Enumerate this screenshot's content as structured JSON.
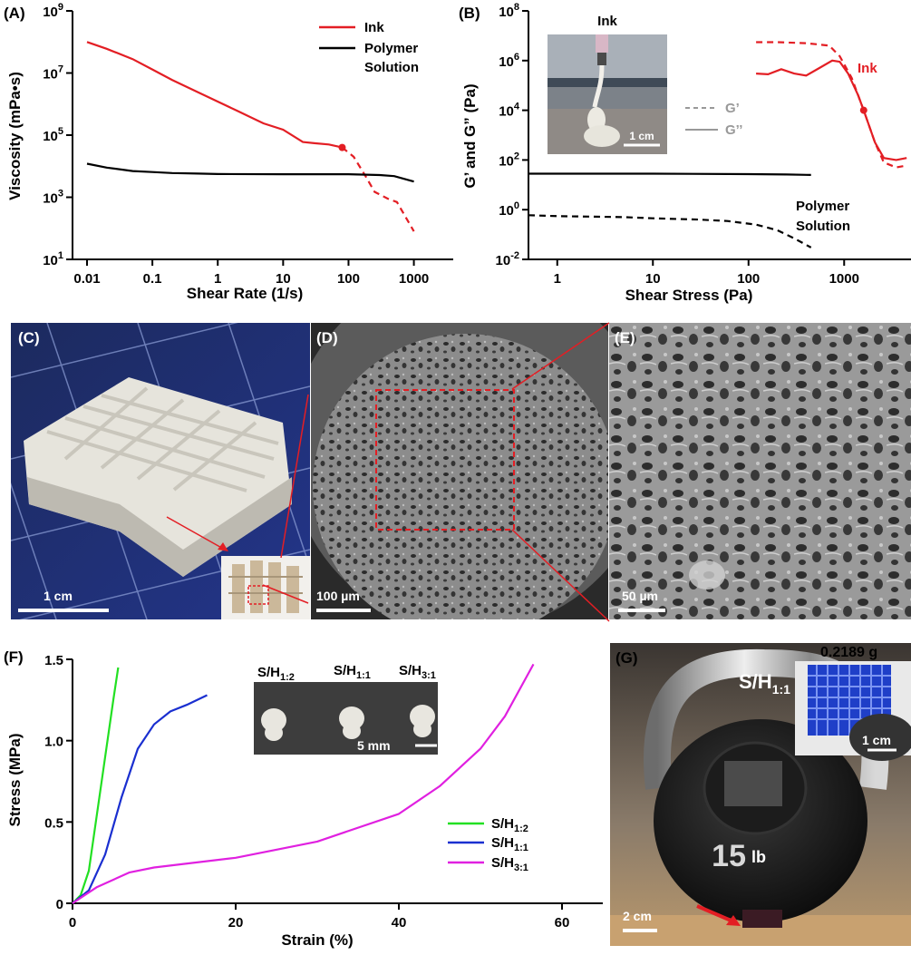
{
  "panel_a": {
    "label": "(A)",
    "chart_data": {
      "type": "line",
      "title": "",
      "xlabel": "Shear Rate (1/s)",
      "ylabel": "Viscosity (mPa•s)",
      "xscale": "log",
      "yscale": "log",
      "xlim": [
        0.006,
        4000
      ],
      "ylim": [
        10,
        1000000000
      ],
      "x_ticks": [
        "0.01",
        "0.1",
        "1",
        "10",
        "100",
        "1000"
      ],
      "y_ticks": [
        "10^1",
        "10^3",
        "10^5",
        "10^7",
        "10^9"
      ],
      "legend_position": "top-right",
      "series": [
        {
          "name": "Ink",
          "color": "#e31e24",
          "style": "solid",
          "x": [
            0.01,
            0.02,
            0.05,
            0.1,
            0.2,
            0.5,
            1,
            2,
            5,
            10,
            20,
            30,
            50,
            80
          ],
          "y": [
            100000000,
            60000000,
            28000000,
            13000000,
            6000000,
            2400000,
            1200000,
            600000,
            240000,
            150000,
            60000,
            55000,
            50000,
            40000
          ]
        },
        {
          "name": "",
          "color": "#e31e24",
          "style": "dashed",
          "x": [
            80,
            120,
            180,
            250,
            400,
            550,
            1000
          ],
          "y": [
            40000,
            20000,
            5000,
            1500,
            900,
            700,
            80
          ]
        },
        {
          "name": "Polymer Solution",
          "color": "#000000",
          "style": "solid",
          "x": [
            0.01,
            0.02,
            0.05,
            0.1,
            0.2,
            0.5,
            1,
            10,
            100,
            300,
            500,
            1000
          ],
          "y": [
            12000,
            9000,
            7000,
            6500,
            6000,
            5800,
            5600,
            5500,
            5500,
            5200,
            4800,
            3200
          ]
        }
      ],
      "markers": [
        {
          "x": 80,
          "y": 40000,
          "color": "#e31e24"
        }
      ],
      "legend": [
        "Ink",
        "Polymer",
        "Solution"
      ]
    }
  },
  "panel_b": {
    "label": "(B)",
    "inset_label": "Ink",
    "inset_scale": "1 cm",
    "chart_data": {
      "type": "line",
      "title": "",
      "xlabel": "Shear Stress (Pa)",
      "ylabel": "G’ and G” (Pa)",
      "xscale": "log",
      "yscale": "log",
      "xlim": [
        0.5,
        5000
      ],
      "ylim": [
        0.01,
        100000000
      ],
      "x_ticks": [
        "1",
        "10",
        "100",
        "1000"
      ],
      "y_ticks": [
        "10^-2",
        "10^0",
        "10^2",
        "10^4",
        "10^6",
        "10^8"
      ],
      "legend_position": "center-right",
      "series": [
        {
          "name": "Ink G’",
          "color": "#e31e24",
          "style": "dashed",
          "x": [
            120,
            200,
            400,
            700,
            900,
            1200,
            1600,
            2100,
            2600,
            3500,
            4500
          ],
          "y": [
            5500000,
            5500000,
            5000000,
            4000000,
            1500000,
            200000,
            10000,
            500,
            80,
            50,
            60
          ]
        },
        {
          "name": "Ink G”",
          "color": "#e31e24",
          "style": "solid",
          "x": [
            120,
            160,
            220,
            300,
            400,
            550,
            750,
            900,
            1100,
            1400,
            1600,
            2100,
            2600,
            3500,
            4500
          ],
          "y": [
            300000,
            280000,
            450000,
            300000,
            250000,
            500000,
            1000000,
            900000,
            300000,
            40000,
            10000,
            500,
            120,
            100,
            120
          ]
        },
        {
          "name": "Polymer Solution G’",
          "color": "#000000",
          "style": "dashed",
          "x": [
            0.5,
            1,
            5,
            10,
            30,
            60,
            120,
            200,
            300,
            450
          ],
          "y": [
            0.6,
            0.55,
            0.5,
            0.45,
            0.4,
            0.35,
            0.25,
            0.15,
            0.07,
            0.03
          ]
        },
        {
          "name": "Polymer Solution G”",
          "color": "#000000",
          "style": "solid",
          "x": [
            0.5,
            1,
            10,
            100,
            250,
            450
          ],
          "y": [
            28,
            28,
            28,
            27,
            26,
            25
          ]
        }
      ],
      "markers": [
        {
          "x": 1600,
          "y": 10000,
          "color": "#e31e24"
        }
      ],
      "legend": [
        "G’",
        "G’’"
      ],
      "annotations": [
        "Ink",
        "Polymer",
        "Solution"
      ]
    }
  },
  "panel_c": {
    "label": "(C)",
    "scalebar": "1 cm"
  },
  "panel_d": {
    "label": "(D)",
    "scalebar": "100 µm"
  },
  "panel_e": {
    "label": "(E)",
    "scalebar": "50 µm"
  },
  "panel_f": {
    "label": "(F)",
    "inset_labels": [
      "S/H",
      "S/H",
      "S/H"
    ],
    "inset_label_subs": [
      "1:2",
      "1:1",
      "3:1"
    ],
    "inset_scale": "5 mm",
    "chart_data": {
      "type": "line",
      "title": "",
      "xlabel": "Strain (%)",
      "ylabel": "Stress (MPa)",
      "xlim": [
        0,
        65
      ],
      "ylim": [
        0,
        1.5
      ],
      "x_ticks": [
        "0",
        "20",
        "40",
        "60"
      ],
      "y_ticks": [
        "0",
        "0.5",
        "1.0",
        "1.5"
      ],
      "legend_position": "center-right",
      "series": [
        {
          "name": "S/H1:2",
          "name_main": "S/H",
          "name_sub": "1:2",
          "color": "#22e022",
          "x": [
            0,
            1,
            2,
            3,
            4,
            5,
            5.6
          ],
          "y": [
            0,
            0.05,
            0.2,
            0.55,
            0.9,
            1.25,
            1.45
          ]
        },
        {
          "name": "S/H1:1",
          "name_main": "S/H",
          "name_sub": "1:1",
          "color": "#1a2fd0",
          "x": [
            0,
            2,
            4,
            6,
            8,
            10,
            12,
            14,
            16.5
          ],
          "y": [
            0,
            0.08,
            0.3,
            0.65,
            0.95,
            1.1,
            1.18,
            1.22,
            1.28
          ]
        },
        {
          "name": "S/H3:1",
          "name_main": "S/H",
          "name_sub": "3:1",
          "color": "#e020e0",
          "x": [
            0,
            3,
            7,
            10,
            20,
            30,
            40,
            45,
            50,
            53,
            56.5
          ],
          "y": [
            0,
            0.1,
            0.19,
            0.22,
            0.28,
            0.38,
            0.55,
            0.72,
            0.95,
            1.15,
            1.47
          ]
        }
      ]
    }
  },
  "panel_g": {
    "label": "(G)",
    "sample_label_main": "S/H",
    "sample_label_sub": "1:1",
    "mass_label": "0.2189 g",
    "weight_value": "15",
    "weight_unit": "lb",
    "inset_scale": "1 cm",
    "scalebar": "2 cm"
  }
}
